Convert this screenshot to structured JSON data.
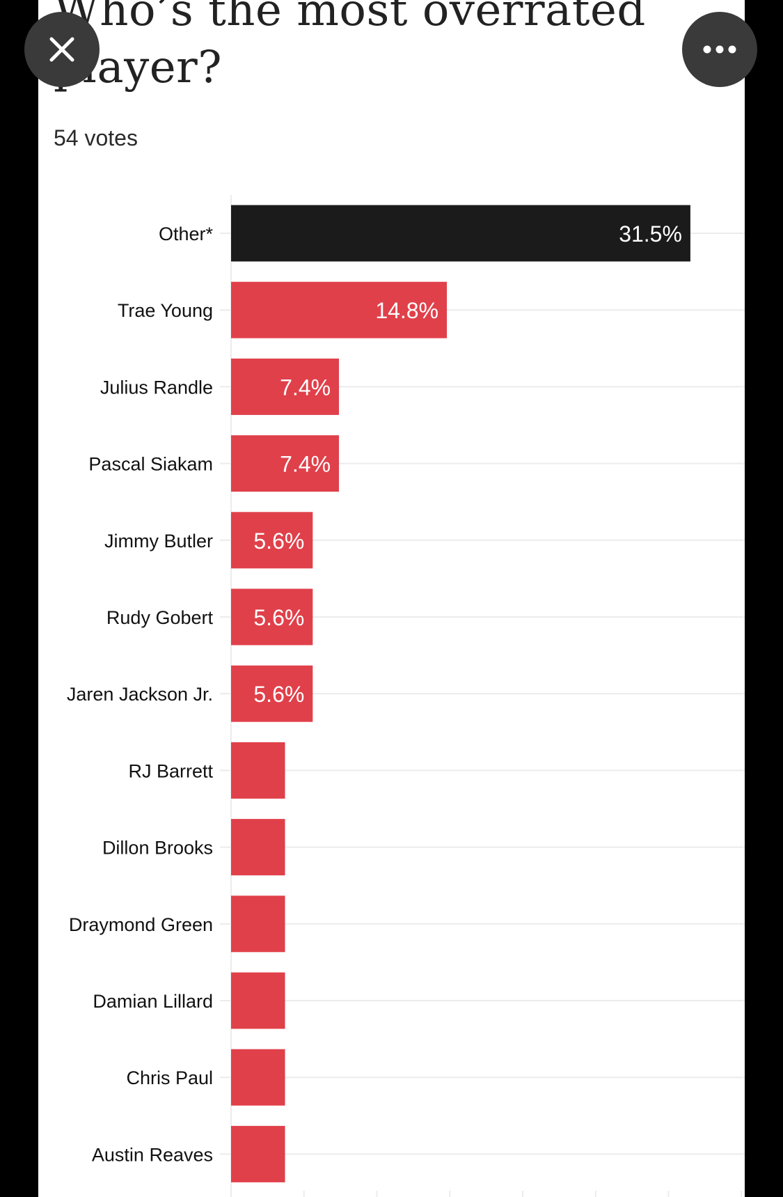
{
  "poll": {
    "title": "Who’s the most overrated player?",
    "votes_label": "54 votes"
  },
  "controls": {
    "close_icon": "close-icon",
    "more_icon": "more-horizontal-icon"
  },
  "colors": {
    "highlight_bar": "#1b1b1b",
    "bar": "#e0404a",
    "gridline": "#ececec",
    "background": "#ffffff",
    "overlay_button": "#3a3a3a"
  },
  "chart_data": {
    "type": "bar",
    "orientation": "horizontal",
    "categories": [
      "Other*",
      "Trae Young",
      "Julius Randle",
      "Pascal Siakam",
      "Jimmy Butler",
      "Rudy Gobert",
      "Jaren Jackson Jr.",
      "RJ Barrett",
      "Dillon Brooks",
      "Draymond Green",
      "Damian Lillard",
      "Chris Paul",
      "Austin Reaves"
    ],
    "values": [
      31.5,
      14.8,
      7.4,
      7.4,
      5.6,
      5.6,
      5.6,
      3.7,
      3.7,
      3.7,
      3.7,
      3.7,
      3.7
    ],
    "value_labels": [
      "31.5%",
      "14.8%",
      "7.4%",
      "7.4%",
      "5.6%",
      "5.6%",
      "5.6%",
      "",
      "",
      "",
      "",
      "",
      ""
    ],
    "highlight_category": "Other*",
    "xlim": [
      0,
      35
    ],
    "grid": true
  }
}
